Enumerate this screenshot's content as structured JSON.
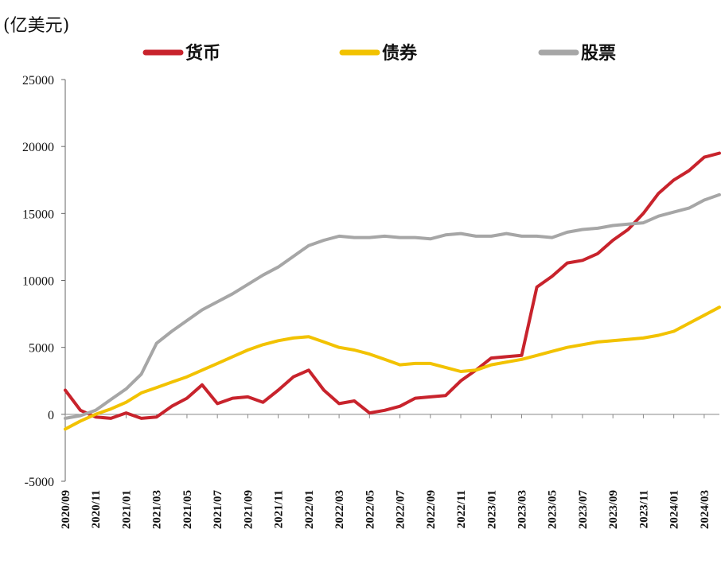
{
  "chart_data": {
    "type": "line",
    "unit_label": "(亿美元)",
    "title": "",
    "xlabel": "",
    "ylabel": "",
    "ylim": [
      -5000,
      25000
    ],
    "yticks": [
      25000,
      20000,
      15000,
      10000,
      5000,
      0,
      -5000
    ],
    "xlim": [
      "2020-09",
      "2024-04"
    ],
    "xticks": [
      "2020/09",
      "2020/11",
      "2021/01",
      "2021/03",
      "2021/05",
      "2021/07",
      "2021/09",
      "2021/11",
      "2022/01",
      "2022/03",
      "2022/05",
      "2022/07",
      "2022/09",
      "2022/11",
      "2023/01",
      "2023/03",
      "2023/05",
      "2023/07",
      "2023/09",
      "2023/11",
      "2024/01",
      "2024/03"
    ],
    "legend_position": "top",
    "grid": false,
    "series": [
      {
        "name": "货币",
        "color": "#c8232c",
        "points": [
          [
            "2020-09",
            1800
          ],
          [
            "2020-10",
            300
          ],
          [
            "2020-11",
            -200
          ],
          [
            "2020-12",
            -300
          ],
          [
            "2021-01",
            100
          ],
          [
            "2021-02",
            -300
          ],
          [
            "2021-03",
            -200
          ],
          [
            "2021-04",
            600
          ],
          [
            "2021-05",
            1200
          ],
          [
            "2021-06",
            2200
          ],
          [
            "2021-07",
            800
          ],
          [
            "2021-08",
            1200
          ],
          [
            "2021-09",
            1300
          ],
          [
            "2021-10",
            900
          ],
          [
            "2021-11",
            1800
          ],
          [
            "2021-12",
            2800
          ],
          [
            "2022-01",
            3300
          ],
          [
            "2022-02",
            1800
          ],
          [
            "2022-03",
            800
          ],
          [
            "2022-04",
            1000
          ],
          [
            "2022-05",
            100
          ],
          [
            "2022-06",
            300
          ],
          [
            "2022-07",
            600
          ],
          [
            "2022-08",
            1200
          ],
          [
            "2022-09",
            1300
          ],
          [
            "2022-10",
            1400
          ],
          [
            "2022-11",
            2500
          ],
          [
            "2022-12",
            3300
          ],
          [
            "2023-01",
            4200
          ],
          [
            "2023-02",
            4300
          ],
          [
            "2023-03",
            4400
          ],
          [
            "2023-04",
            9500
          ],
          [
            "2023-05",
            10300
          ],
          [
            "2023-06",
            11300
          ],
          [
            "2023-07",
            11500
          ],
          [
            "2023-08",
            12000
          ],
          [
            "2023-09",
            13000
          ],
          [
            "2023-10",
            13800
          ],
          [
            "2023-11",
            15000
          ],
          [
            "2023-12",
            16500
          ],
          [
            "2024-01",
            17500
          ],
          [
            "2024-02",
            18200
          ],
          [
            "2024-03",
            19200
          ],
          [
            "2024-04",
            19500
          ]
        ]
      },
      {
        "name": "债券",
        "color": "#f2c200",
        "points": [
          [
            "2020-09",
            -1100
          ],
          [
            "2020-10",
            -500
          ],
          [
            "2020-11",
            0
          ],
          [
            "2020-12",
            400
          ],
          [
            "2021-01",
            900
          ],
          [
            "2021-02",
            1600
          ],
          [
            "2021-03",
            2000
          ],
          [
            "2021-04",
            2400
          ],
          [
            "2021-05",
            2800
          ],
          [
            "2021-06",
            3300
          ],
          [
            "2021-07",
            3800
          ],
          [
            "2021-08",
            4300
          ],
          [
            "2021-09",
            4800
          ],
          [
            "2021-10",
            5200
          ],
          [
            "2021-11",
            5500
          ],
          [
            "2021-12",
            5700
          ],
          [
            "2022-01",
            5800
          ],
          [
            "2022-02",
            5400
          ],
          [
            "2022-03",
            5000
          ],
          [
            "2022-04",
            4800
          ],
          [
            "2022-05",
            4500
          ],
          [
            "2022-06",
            4100
          ],
          [
            "2022-07",
            3700
          ],
          [
            "2022-08",
            3800
          ],
          [
            "2022-09",
            3800
          ],
          [
            "2022-10",
            3500
          ],
          [
            "2022-11",
            3200
          ],
          [
            "2022-12",
            3300
          ],
          [
            "2023-01",
            3700
          ],
          [
            "2023-02",
            3900
          ],
          [
            "2023-03",
            4100
          ],
          [
            "2023-04",
            4400
          ],
          [
            "2023-05",
            4700
          ],
          [
            "2023-06",
            5000
          ],
          [
            "2023-07",
            5200
          ],
          [
            "2023-08",
            5400
          ],
          [
            "2023-09",
            5500
          ],
          [
            "2023-10",
            5600
          ],
          [
            "2023-11",
            5700
          ],
          [
            "2023-12",
            5900
          ],
          [
            "2024-01",
            6200
          ],
          [
            "2024-02",
            6800
          ],
          [
            "2024-03",
            7400
          ],
          [
            "2024-04",
            8000
          ]
        ]
      },
      {
        "name": "股票",
        "color": "#a6a6a6",
        "points": [
          [
            "2020-09",
            -300
          ],
          [
            "2020-10",
            -100
          ],
          [
            "2020-11",
            300
          ],
          [
            "2020-12",
            1100
          ],
          [
            "2021-01",
            1900
          ],
          [
            "2021-02",
            3000
          ],
          [
            "2021-03",
            5300
          ],
          [
            "2021-04",
            6200
          ],
          [
            "2021-05",
            7000
          ],
          [
            "2021-06",
            7800
          ],
          [
            "2021-07",
            8400
          ],
          [
            "2021-08",
            9000
          ],
          [
            "2021-09",
            9700
          ],
          [
            "2021-10",
            10400
          ],
          [
            "2021-11",
            11000
          ],
          [
            "2021-12",
            11800
          ],
          [
            "2022-01",
            12600
          ],
          [
            "2022-02",
            13000
          ],
          [
            "2022-03",
            13300
          ],
          [
            "2022-04",
            13200
          ],
          [
            "2022-05",
            13200
          ],
          [
            "2022-06",
            13300
          ],
          [
            "2022-07",
            13200
          ],
          [
            "2022-08",
            13200
          ],
          [
            "2022-09",
            13100
          ],
          [
            "2022-10",
            13400
          ],
          [
            "2022-11",
            13500
          ],
          [
            "2022-12",
            13300
          ],
          [
            "2023-01",
            13300
          ],
          [
            "2023-02",
            13500
          ],
          [
            "2023-03",
            13300
          ],
          [
            "2023-04",
            13300
          ],
          [
            "2023-05",
            13200
          ],
          [
            "2023-06",
            13600
          ],
          [
            "2023-07",
            13800
          ],
          [
            "2023-08",
            13900
          ],
          [
            "2023-09",
            14100
          ],
          [
            "2023-10",
            14200
          ],
          [
            "2023-11",
            14300
          ],
          [
            "2023-12",
            14800
          ],
          [
            "2024-01",
            15100
          ],
          [
            "2024-02",
            15400
          ],
          [
            "2024-03",
            16000
          ],
          [
            "2024-04",
            16400
          ]
        ]
      }
    ]
  }
}
